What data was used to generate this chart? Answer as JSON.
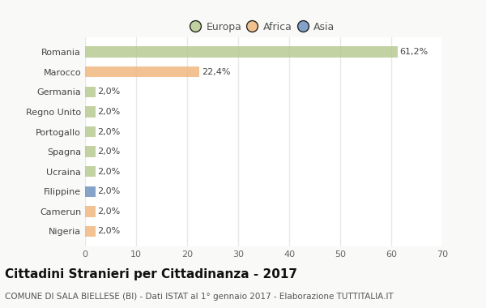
{
  "categories": [
    "Romania",
    "Marocco",
    "Germania",
    "Regno Unito",
    "Portogallo",
    "Spagna",
    "Ucraina",
    "Filippine",
    "Camerun",
    "Nigeria"
  ],
  "values": [
    61.2,
    22.4,
    2.0,
    2.0,
    2.0,
    2.0,
    2.0,
    2.0,
    2.0,
    2.0
  ],
  "labels": [
    "61,2%",
    "22,4%",
    "2,0%",
    "2,0%",
    "2,0%",
    "2,0%",
    "2,0%",
    "2,0%",
    "2,0%",
    "2,0%"
  ],
  "colors": [
    "#b5c98e",
    "#f0b57a",
    "#b5c98e",
    "#b5c98e",
    "#b5c98e",
    "#b5c98e",
    "#b5c98e",
    "#6b8fbf",
    "#f0b57a",
    "#f0b57a"
  ],
  "legend_labels": [
    "Europa",
    "Africa",
    "Asia"
  ],
  "legend_colors": [
    "#b5c98e",
    "#f0b57a",
    "#6b8fbf"
  ],
  "xlim": [
    0,
    70
  ],
  "xticks": [
    0,
    10,
    20,
    30,
    40,
    50,
    60,
    70
  ],
  "title": "Cittadini Stranieri per Cittadinanza - 2017",
  "subtitle": "COMUNE DI SALA BIELLESE (BI) - Dati ISTAT al 1° gennaio 2017 - Elaborazione TUTTITALIA.IT",
  "fig_bg_color": "#f9f9f7",
  "axes_bg_color": "#ffffff",
  "bar_alpha": 0.82,
  "grid_color": "#e8e8e8",
  "title_fontsize": 11,
  "subtitle_fontsize": 7.5,
  "label_fontsize": 8,
  "tick_fontsize": 8,
  "legend_fontsize": 9
}
